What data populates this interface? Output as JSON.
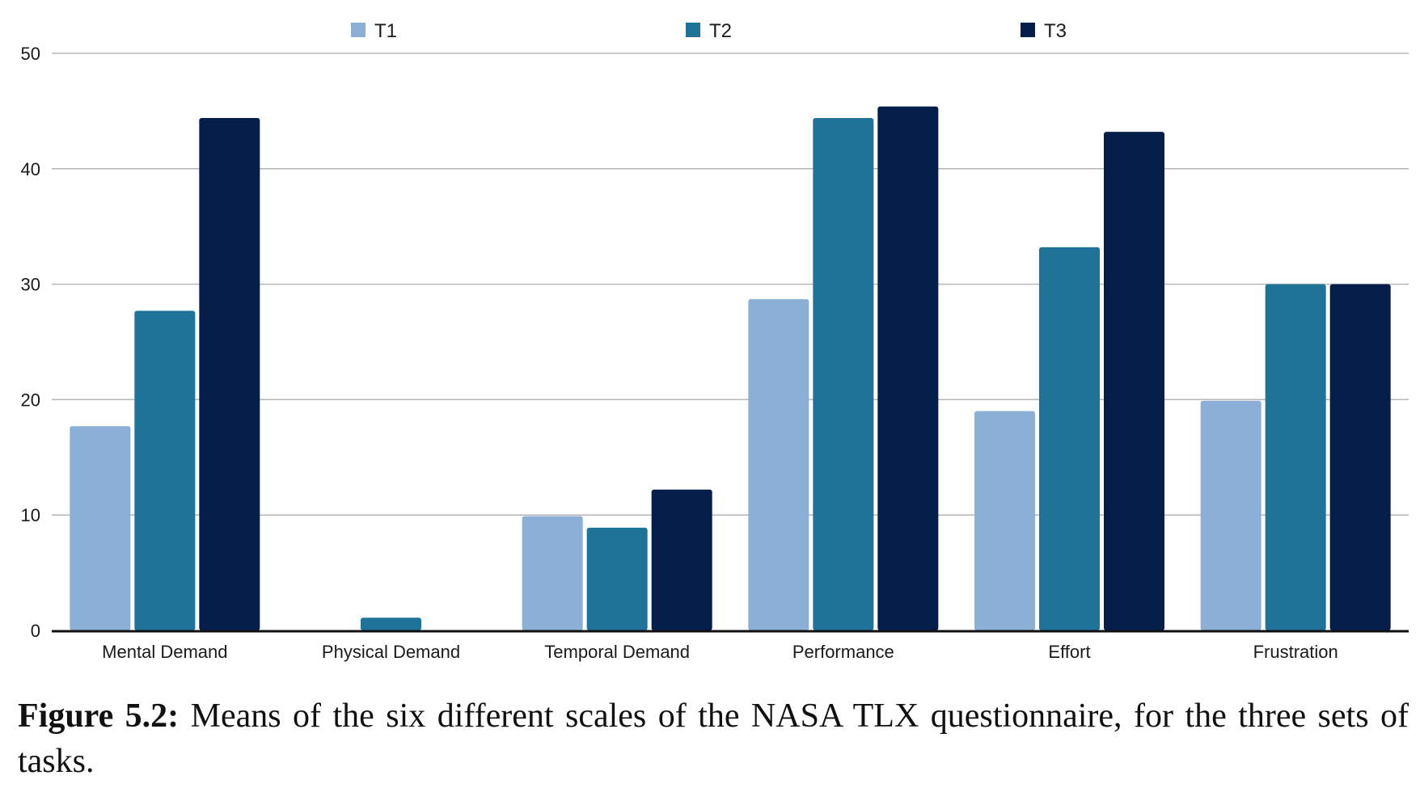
{
  "caption": {
    "label": "Figure 5.2:",
    "text": " Means of the six different scales of the NASA TLX questionnaire, for the three sets of tasks."
  },
  "chart_data": {
    "type": "bar",
    "categories": [
      "Mental Demand",
      "Physical Demand",
      "Temporal Demand",
      "Performance",
      "Effort",
      "Frustration"
    ],
    "series": [
      {
        "name": "T1",
        "color": "#8cb0d5",
        "values": [
          17.7,
          0,
          9.9,
          28.7,
          19.0,
          19.9
        ]
      },
      {
        "name": "T2",
        "color": "#1f7399",
        "values": [
          27.7,
          1.1,
          8.9,
          44.4,
          33.2,
          30.0
        ]
      },
      {
        "name": "T3",
        "color": "#051e49",
        "values": [
          44.4,
          0,
          12.2,
          45.4,
          43.2,
          30.0
        ]
      }
    ],
    "yticks": [
      "0",
      "10",
      "20",
      "30",
      "40",
      "50"
    ],
    "ylim": [
      0,
      50
    ],
    "grid": true,
    "legend": "top-center",
    "title": "",
    "xlabel": "",
    "ylabel": ""
  }
}
